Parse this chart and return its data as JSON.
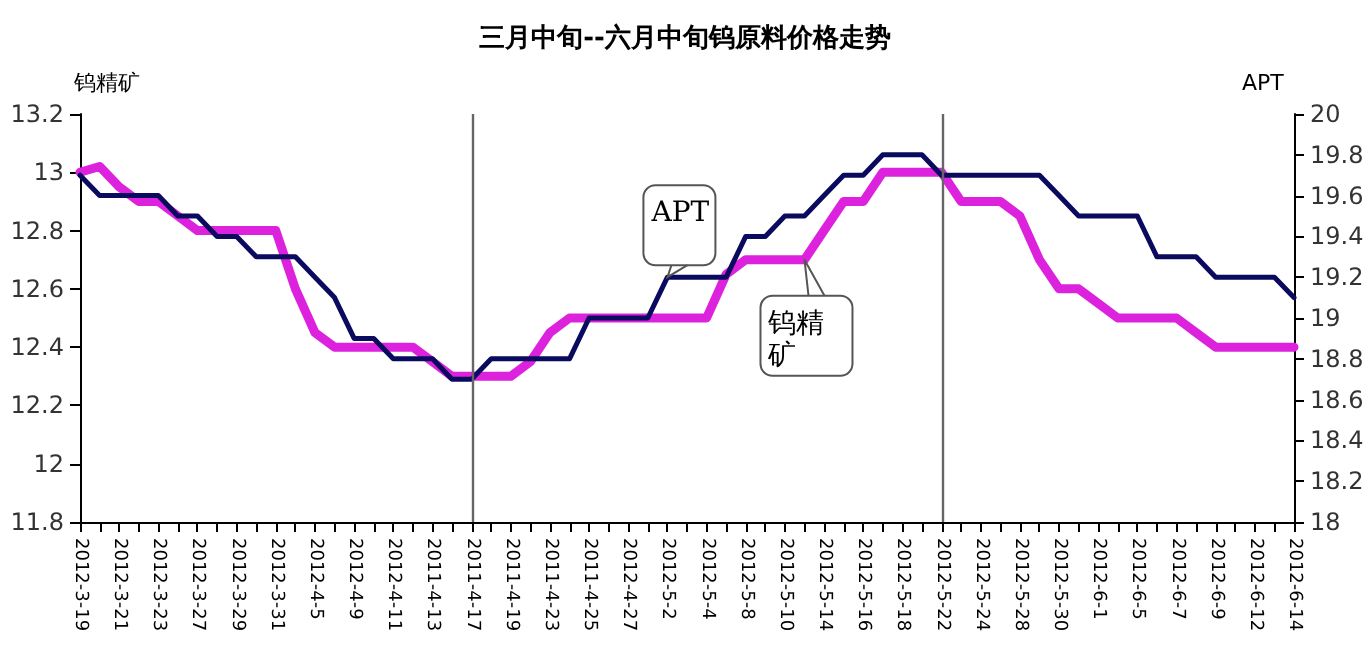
{
  "chart_data": {
    "type": "line",
    "title": "三月中旬--六月中旬钨原料价格走势",
    "ylabel": "钨精矿",
    "y2label": "APT",
    "categories": [
      "2012-3-19",
      null,
      "2012-3-21",
      null,
      "2012-3-23",
      null,
      "2012-3-27",
      null,
      "2012-3-29",
      null,
      "2012-3-31",
      null,
      "2012-4-5",
      null,
      "2012-4-9",
      null,
      "2012-4-11",
      null,
      "2011-4-13",
      null,
      "2011-4-17",
      null,
      "2011-4-19",
      null,
      "2011-4-23",
      null,
      "2011-4-25",
      null,
      "2012-4-27",
      null,
      "2012-5-2",
      null,
      "2012-5-4",
      null,
      "2012-5-8",
      null,
      "2012-5-10",
      null,
      "2012-5-14",
      null,
      "2012-5-16",
      null,
      "2012-5-18",
      null,
      "2012-5-22",
      null,
      "2012-5-24",
      null,
      "2012-5-28",
      null,
      "2012-5-30",
      null,
      "2012-6-1",
      null,
      "2012-6-5",
      null,
      "2012-6-7",
      null,
      "2012-6-9",
      null,
      "2012-6-12",
      null,
      "2012-6-14"
    ],
    "series": [
      {
        "name": "钨精矿",
        "color": "#dd22dd",
        "values": [
          13.0,
          13.02,
          12.95,
          12.9,
          12.9,
          12.85,
          12.8,
          12.8,
          12.8,
          12.8,
          12.8,
          12.6,
          12.45,
          12.4,
          12.4,
          12.4,
          12.4,
          12.4,
          12.35,
          12.3,
          12.3,
          12.3,
          12.3,
          12.35,
          12.45,
          12.5,
          12.5,
          12.5,
          12.5,
          12.5,
          12.5,
          12.5,
          12.5,
          12.65,
          12.7,
          12.7,
          12.7,
          12.7,
          12.8,
          12.9,
          12.9,
          13.0,
          13.0,
          13.0,
          13.0,
          12.9,
          12.9,
          12.9,
          12.85,
          12.7,
          12.6,
          12.6,
          12.55,
          12.5,
          12.5,
          12.5,
          12.5,
          12.45,
          12.4,
          12.4,
          12.4,
          12.4,
          12.4
        ]
      },
      {
        "name": "APT",
        "color": "#0a0a5e",
        "axis": "y2",
        "values": [
          19.7,
          19.6,
          19.6,
          19.6,
          19.6,
          19.5,
          19.5,
          19.4,
          19.4,
          19.3,
          19.3,
          19.3,
          19.2,
          19.1,
          18.9,
          18.9,
          18.8,
          18.8,
          18.8,
          18.7,
          18.7,
          18.8,
          18.8,
          18.8,
          18.8,
          18.8,
          19.0,
          19.0,
          19.0,
          19.0,
          19.2,
          19.2,
          19.2,
          19.2,
          19.4,
          19.4,
          19.5,
          19.5,
          19.6,
          19.7,
          19.7,
          19.8,
          19.8,
          19.8,
          19.7,
          19.7,
          19.7,
          19.7,
          19.7,
          19.7,
          19.6,
          19.5,
          19.5,
          19.5,
          19.5,
          19.3,
          19.3,
          19.3,
          19.2,
          19.2,
          19.2,
          19.2,
          19.1
        ]
      }
    ],
    "ylim": [
      11.8,
      13.2
    ],
    "yticks": [
      11.8,
      12,
      12.2,
      12.4,
      12.6,
      12.8,
      13,
      13.2
    ],
    "y2lim": [
      18,
      20
    ],
    "y2ticks": [
      18,
      18.2,
      18.4,
      18.6,
      18.8,
      19,
      19.2,
      19.4,
      19.6,
      19.8,
      20
    ],
    "ref_lines": [
      {
        "axis": "x",
        "value": "2011-4-17",
        "color": "#666666"
      },
      {
        "axis": "x",
        "value": "2012-5-22",
        "color": "#666666"
      }
    ],
    "grid": false,
    "marker": "none",
    "line_style": "solid"
  }
}
